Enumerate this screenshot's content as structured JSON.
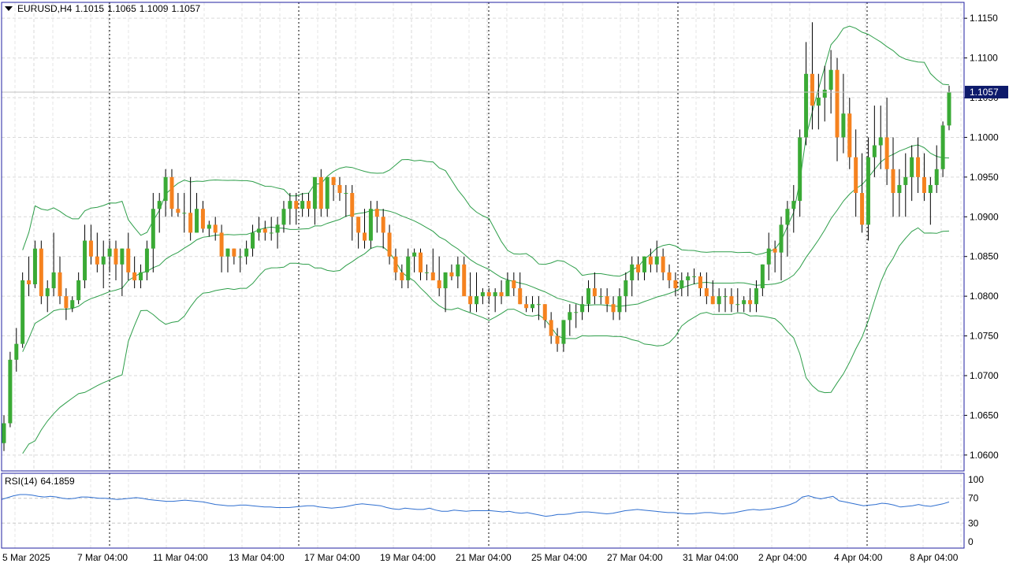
{
  "header": {
    "symbol": "EURUSD,H4",
    "open": "1.1015",
    "high": "1.1065",
    "low": "1.1009",
    "close": "1.1057"
  },
  "price_label": "1.1057",
  "rsi": {
    "label": "RSI(14)",
    "value": "64.1859",
    "levels": [
      "100",
      "70",
      "30",
      "0"
    ]
  },
  "colors": {
    "bull": "#3aaa35",
    "bear": "#f5821f",
    "band": "#2e9e4a",
    "rsi": "#2f6fd0",
    "frame": "#1f1fa0",
    "price_tag": "#0d1a6b"
  },
  "chart_data": [
    {
      "type": "candlestick",
      "title": "EURUSD,H4",
      "ylim": [
        1.058,
        1.117
      ],
      "y_ticks": [
        "1.1150",
        "1.1100",
        "1.1050",
        "1.1000",
        "1.0950",
        "1.0900",
        "1.0850",
        "1.0800",
        "1.0750",
        "1.0700",
        "1.0650",
        "1.0600"
      ],
      "x_ticks": [
        "5 Mar 2025",
        "7 Mar 04:00",
        "11 Mar 04:00",
        "13 Mar 04:00",
        "17 Mar 04:00",
        "19 Mar 04:00",
        "21 Mar 04:00",
        "25 Mar 04:00",
        "27 Mar 04:00",
        "31 Mar 04:00",
        "2 Apr 04:00",
        "4 Apr 04:00",
        "8 Apr 04:00"
      ],
      "separators": [
        "7 Mar 04:00",
        "17 Mar 04:00",
        "21 Mar 04:00",
        "31 Mar 04:00",
        "4 Apr 04:00"
      ],
      "candles": [
        [
          1.0615,
          1.065,
          1.0605,
          1.064
        ],
        [
          1.064,
          1.073,
          1.0635,
          1.072
        ],
        [
          1.072,
          1.076,
          1.0705,
          1.074
        ],
        [
          1.074,
          1.083,
          1.0735,
          1.082
        ],
        [
          1.082,
          1.085,
          1.08,
          1.0815
        ],
        [
          1.0815,
          1.087,
          1.081,
          1.086
        ],
        [
          1.086,
          1.087,
          1.079,
          1.08
        ],
        [
          1.08,
          1.082,
          1.078,
          1.081
        ],
        [
          1.081,
          1.088,
          1.08,
          1.083
        ],
        [
          1.083,
          1.085,
          1.079,
          1.08
        ],
        [
          1.08,
          1.081,
          1.077,
          1.0785
        ],
        [
          1.0785,
          1.08,
          1.078,
          1.0795
        ],
        [
          1.0795,
          1.083,
          1.079,
          1.082
        ],
        [
          1.082,
          1.089,
          1.081,
          1.087
        ],
        [
          1.087,
          1.089,
          1.084,
          1.085
        ],
        [
          1.085,
          1.088,
          1.083,
          1.084
        ],
        [
          1.084,
          1.087,
          1.081,
          1.085
        ],
        [
          1.085,
          1.087,
          1.083,
          1.086
        ],
        [
          1.086,
          1.087,
          1.082,
          1.084
        ],
        [
          1.084,
          1.086,
          1.08,
          1.086
        ],
        [
          1.086,
          1.088,
          1.082,
          1.083
        ],
        [
          1.083,
          1.085,
          1.081,
          1.082
        ],
        [
          1.082,
          1.084,
          1.081,
          1.083
        ],
        [
          1.083,
          1.087,
          1.082,
          1.086
        ],
        [
          1.086,
          1.093,
          1.083,
          1.091
        ],
        [
          1.091,
          1.093,
          1.088,
          1.092
        ],
        [
          1.092,
          1.096,
          1.09,
          1.095
        ],
        [
          1.095,
          1.096,
          1.09,
          1.091
        ],
        [
          1.091,
          1.093,
          1.09,
          1.0905
        ],
        [
          1.0905,
          1.093,
          1.088,
          1.0905
        ],
        [
          1.0905,
          1.095,
          1.087,
          1.088
        ],
        [
          1.088,
          1.093,
          1.088,
          1.091
        ],
        [
          1.091,
          1.092,
          1.088,
          1.0885
        ],
        [
          1.0885,
          1.0895,
          1.0875,
          1.089
        ],
        [
          1.089,
          1.09,
          1.087,
          1.088
        ],
        [
          1.088,
          1.089,
          1.083,
          1.085
        ],
        [
          1.085,
          1.086,
          1.083,
          1.086
        ],
        [
          1.086,
          1.086,
          1.084,
          1.085
        ],
        [
          1.085,
          1.086,
          1.083,
          1.085
        ],
        [
          1.085,
          1.087,
          1.084,
          1.086
        ],
        [
          1.086,
          1.089,
          1.085,
          1.088
        ],
        [
          1.088,
          1.09,
          1.087,
          1.0885
        ],
        [
          1.0885,
          1.0895,
          1.087,
          1.088
        ],
        [
          1.088,
          1.09,
          1.087,
          1.088
        ],
        [
          1.088,
          1.09,
          1.086,
          1.089
        ],
        [
          1.089,
          1.092,
          1.088,
          1.091
        ],
        [
          1.091,
          1.093,
          1.089,
          1.092
        ],
        [
          1.092,
          1.093,
          1.089,
          1.091
        ],
        [
          1.091,
          1.093,
          1.09,
          1.092
        ],
        [
          1.092,
          1.093,
          1.09,
          1.091
        ],
        [
          1.091,
          1.095,
          1.089,
          1.095
        ],
        [
          1.095,
          1.096,
          1.09,
          1.091
        ],
        [
          1.091,
          1.095,
          1.09,
          1.095
        ],
        [
          1.095,
          1.095,
          1.092,
          1.094
        ],
        [
          1.094,
          1.095,
          1.092,
          1.093
        ],
        [
          1.093,
          1.094,
          1.09,
          1.093
        ],
        [
          1.093,
          1.094,
          1.087,
          1.09
        ],
        [
          1.09,
          1.09,
          1.086,
          1.088
        ],
        [
          1.088,
          1.091,
          1.086,
          1.087
        ],
        [
          1.087,
          1.092,
          1.086,
          1.091
        ],
        [
          1.091,
          1.092,
          1.088,
          1.09
        ],
        [
          1.09,
          1.091,
          1.086,
          1.088
        ],
        [
          1.088,
          1.089,
          1.084,
          1.085
        ],
        [
          1.085,
          1.086,
          1.082,
          1.083
        ],
        [
          1.083,
          1.084,
          1.081,
          1.082
        ],
        [
          1.082,
          1.086,
          1.081,
          1.085
        ],
        [
          1.085,
          1.086,
          1.083,
          1.0855
        ],
        [
          1.0855,
          1.086,
          1.082,
          1.083
        ],
        [
          1.083,
          1.084,
          1.082,
          1.083
        ],
        [
          1.083,
          1.086,
          1.082,
          1.082
        ],
        [
          1.082,
          1.085,
          1.08,
          1.081
        ],
        [
          1.081,
          1.083,
          1.078,
          1.083
        ],
        [
          1.083,
          1.084,
          1.082,
          1.0825
        ],
        [
          1.0825,
          1.085,
          1.081,
          1.084
        ],
        [
          1.084,
          1.085,
          1.08,
          1.08
        ],
        [
          1.08,
          1.083,
          1.078,
          1.079
        ],
        [
          1.079,
          1.083,
          1.078,
          1.08
        ],
        [
          1.08,
          1.081,
          1.079,
          1.0805
        ],
        [
          1.0805,
          1.081,
          1.079,
          1.08
        ],
        [
          1.08,
          1.081,
          1.078,
          1.0805
        ],
        [
          1.0805,
          1.082,
          1.079,
          1.08
        ],
        [
          1.08,
          1.083,
          1.08,
          1.082
        ],
        [
          1.082,
          1.083,
          1.08,
          1.081
        ],
        [
          1.081,
          1.083,
          1.079,
          1.079
        ],
        [
          1.079,
          1.08,
          1.078,
          1.0785
        ],
        [
          1.0785,
          1.08,
          1.078,
          1.079
        ],
        [
          1.079,
          1.08,
          1.077,
          1.079
        ],
        [
          1.079,
          1.079,
          1.076,
          1.077
        ],
        [
          1.077,
          1.078,
          1.074,
          1.075
        ],
        [
          1.075,
          1.076,
          1.073,
          1.074
        ],
        [
          1.074,
          1.077,
          1.073,
          1.077
        ],
        [
          1.077,
          1.079,
          1.075,
          1.078
        ],
        [
          1.078,
          1.079,
          1.076,
          1.078
        ],
        [
          1.078,
          1.08,
          1.077,
          1.079
        ],
        [
          1.079,
          1.082,
          1.078,
          1.081
        ],
        [
          1.081,
          1.083,
          1.079,
          1.08
        ],
        [
          1.08,
          1.081,
          1.079,
          1.08
        ],
        [
          1.08,
          1.081,
          1.078,
          1.079
        ],
        [
          1.079,
          1.08,
          1.077,
          1.078
        ],
        [
          1.078,
          1.081,
          1.077,
          1.08
        ],
        [
          1.08,
          1.083,
          1.078,
          1.082
        ],
        [
          1.082,
          1.085,
          1.08,
          1.084
        ],
        [
          1.084,
          1.085,
          1.082,
          1.083
        ],
        [
          1.083,
          1.085,
          1.082,
          1.085
        ],
        [
          1.085,
          1.086,
          1.083,
          1.084
        ],
        [
          1.084,
          1.087,
          1.083,
          1.085
        ],
        [
          1.085,
          1.086,
          1.082,
          1.083
        ],
        [
          1.083,
          1.084,
          1.081,
          1.082
        ],
        [
          1.082,
          1.083,
          1.08,
          1.081
        ],
        [
          1.081,
          1.083,
          1.08,
          1.082
        ],
        [
          1.082,
          1.083,
          1.08,
          1.0825
        ],
        [
          1.0825,
          1.0835,
          1.0815,
          1.0825
        ],
        [
          1.0825,
          1.083,
          1.08,
          1.081
        ],
        [
          1.081,
          1.083,
          1.079,
          1.08
        ],
        [
          1.08,
          1.082,
          1.079,
          1.079
        ],
        [
          1.079,
          1.081,
          1.078,
          1.08
        ],
        [
          1.08,
          1.081,
          1.078,
          1.08
        ],
        [
          1.08,
          1.081,
          1.078,
          1.079
        ],
        [
          1.079,
          1.081,
          1.078,
          1.079
        ],
        [
          1.079,
          1.08,
          1.078,
          1.0795
        ],
        [
          1.0795,
          1.081,
          1.078,
          1.079
        ],
        [
          1.079,
          1.082,
          1.078,
          1.081
        ],
        [
          1.081,
          1.084,
          1.08,
          1.084
        ],
        [
          1.084,
          1.088,
          1.082,
          1.086
        ],
        [
          1.086,
          1.087,
          1.083,
          1.0855
        ],
        [
          1.0855,
          1.09,
          1.082,
          1.089
        ],
        [
          1.089,
          1.092,
          1.085,
          1.091
        ],
        [
          1.091,
          1.094,
          1.088,
          1.092
        ],
        [
          1.092,
          1.101,
          1.09,
          1.1
        ],
        [
          1.1,
          1.112,
          1.099,
          1.108
        ],
        [
          1.108,
          1.1145,
          1.101,
          1.104
        ],
        [
          1.104,
          1.108,
          1.101,
          1.105
        ],
        [
          1.105,
          1.109,
          1.102,
          1.106
        ],
        [
          1.106,
          1.111,
          1.103,
          1.1085
        ],
        [
          1.1085,
          1.11,
          1.097,
          1.1
        ],
        [
          1.1,
          1.108,
          1.098,
          1.103
        ],
        [
          1.103,
          1.105,
          1.096,
          1.0975
        ],
        [
          1.0975,
          1.101,
          1.09,
          1.093
        ],
        [
          1.093,
          1.098,
          1.088,
          1.089
        ],
        [
          1.089,
          1.1,
          1.087,
          1.0975
        ],
        [
          1.0975,
          1.104,
          1.095,
          1.099
        ],
        [
          1.099,
          1.104,
          1.096,
          1.1
        ],
        [
          1.1,
          1.105,
          1.094,
          1.096
        ],
        [
          1.096,
          1.1,
          1.09,
          1.093
        ],
        [
          1.093,
          1.096,
          1.09,
          1.094
        ],
        [
          1.094,
          1.098,
          1.09,
          1.095
        ],
        [
          1.095,
          1.099,
          1.092,
          1.0975
        ],
        [
          1.0975,
          1.1,
          1.093,
          1.095
        ],
        [
          1.095,
          1.098,
          1.092,
          1.093
        ],
        [
          1.093,
          1.095,
          1.089,
          1.094
        ],
        [
          1.094,
          1.099,
          1.093,
          1.096
        ],
        [
          1.096,
          1.102,
          1.095,
          1.1015
        ],
        [
          1.1015,
          1.1065,
          1.1009,
          1.1057
        ]
      ]
    },
    {
      "type": "line",
      "title": "RSI(14) 64.1859",
      "ylim": [
        0,
        100
      ],
      "y_ticks": [
        100,
        70,
        30,
        0
      ],
      "values": [
        68,
        71,
        74,
        76,
        76,
        75,
        73,
        72,
        73,
        72,
        70,
        69,
        70,
        72,
        72,
        71,
        70,
        70,
        69,
        68,
        69,
        70,
        71,
        70,
        68,
        67,
        66,
        65,
        65,
        66,
        67,
        66,
        65,
        64,
        62,
        60,
        59,
        58,
        58,
        59,
        59,
        58,
        57,
        56,
        56,
        55,
        55,
        55,
        56,
        57,
        58,
        58,
        56,
        55,
        54,
        55,
        56,
        58,
        60,
        61,
        60,
        59,
        58,
        55,
        53,
        52,
        54,
        53,
        52,
        52,
        54,
        51,
        49,
        49,
        51,
        50,
        49,
        50,
        50,
        50,
        50,
        49,
        48,
        49,
        47,
        46,
        47,
        45,
        43,
        41,
        42,
        44,
        44,
        45,
        47,
        48,
        48,
        47,
        46,
        45,
        46,
        48,
        50,
        51,
        52,
        51,
        50,
        49,
        48,
        47,
        47,
        46,
        45,
        45,
        46,
        47,
        47,
        46,
        45,
        46,
        47,
        49,
        51,
        52,
        51,
        52,
        53,
        55,
        57,
        60,
        64,
        72,
        74,
        71,
        69,
        71,
        73,
        66,
        64,
        62,
        60,
        58,
        59,
        60,
        62,
        61,
        59,
        56,
        57,
        58,
        60,
        58,
        57,
        59,
        61,
        64
      ]
    }
  ]
}
